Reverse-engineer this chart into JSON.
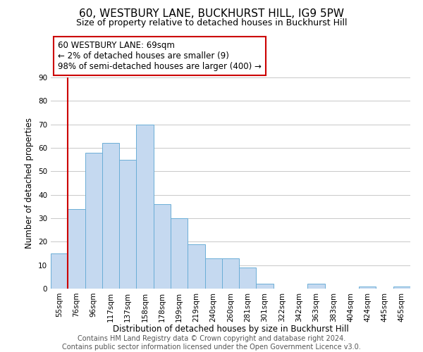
{
  "title": "60, WESTBURY LANE, BUCKHURST HILL, IG9 5PW",
  "subtitle": "Size of property relative to detached houses in Buckhurst Hill",
  "xlabel": "Distribution of detached houses by size in Buckhurst Hill",
  "ylabel": "Number of detached properties",
  "bar_labels": [
    "55sqm",
    "76sqm",
    "96sqm",
    "117sqm",
    "137sqm",
    "158sqm",
    "178sqm",
    "199sqm",
    "219sqm",
    "240sqm",
    "260sqm",
    "281sqm",
    "301sqm",
    "322sqm",
    "342sqm",
    "363sqm",
    "383sqm",
    "404sqm",
    "424sqm",
    "445sqm",
    "465sqm"
  ],
  "bar_heights": [
    15,
    34,
    58,
    62,
    55,
    70,
    36,
    30,
    19,
    13,
    13,
    9,
    2,
    0,
    0,
    2,
    0,
    0,
    1,
    0,
    1
  ],
  "bar_color": "#c5d9f0",
  "bar_edge_color": "#6baed6",
  "highlight_color": "#cc0000",
  "annotation_text": "60 WESTBURY LANE: 69sqm\n← 2% of detached houses are smaller (9)\n98% of semi-detached houses are larger (400) →",
  "annotation_box_color": "#ffffff",
  "annotation_box_edge_color": "#cc0000",
  "ylim": [
    0,
    90
  ],
  "yticks": [
    0,
    10,
    20,
    30,
    40,
    50,
    60,
    70,
    80,
    90
  ],
  "footer_text": "Contains HM Land Registry data © Crown copyright and database right 2024.\nContains public sector information licensed under the Open Government Licence v3.0.",
  "background_color": "#ffffff",
  "grid_color": "#c8c8c8",
  "title_fontsize": 11,
  "subtitle_fontsize": 9,
  "axis_label_fontsize": 8.5,
  "tick_fontsize": 7.5,
  "annotation_fontsize": 8.5,
  "footer_fontsize": 7
}
